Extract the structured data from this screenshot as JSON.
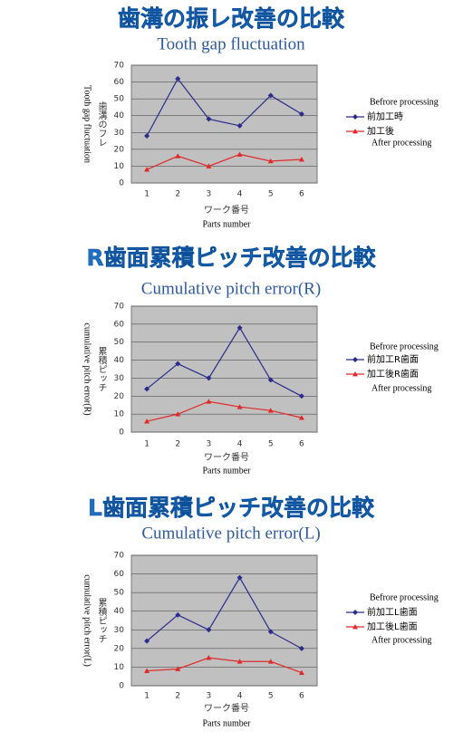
{
  "chart_data": [
    {
      "type": "line",
      "title": "歯溝の振レ改善の比較",
      "subtitle": "Tooth gap fluctuation",
      "y_label": "歯溝のフレ",
      "y_label_en": "Tooth gap fluctuation",
      "x_label": "ワーク番号",
      "x_label_en": "Parts number",
      "categories": [
        "1",
        "2",
        "3",
        "4",
        "5",
        "6"
      ],
      "ylim": [
        0,
        70
      ],
      "yticks": [
        0,
        10,
        20,
        30,
        40,
        50,
        60,
        70
      ],
      "series": [
        {
          "name": "前加工時",
          "annotation": "Befrore processing",
          "color": "#2b2b8c",
          "marker": "diamond",
          "values": [
            28,
            62,
            38,
            34,
            52,
            41
          ]
        },
        {
          "name": "加工後",
          "annotation": "After processing",
          "color": "#e02a2a",
          "marker": "triangle",
          "values": [
            8,
            16,
            10,
            17,
            13,
            14
          ]
        }
      ]
    },
    {
      "type": "line",
      "title": "R歯面累積ピッチ改善の比較",
      "subtitle": "Cumulative pitch error(R)",
      "y_label": "累積ピッチ",
      "y_label_en": "cumulative pitch error(R)",
      "x_label": "ワーク番号",
      "x_label_en": "Parts number",
      "categories": [
        "1",
        "2",
        "3",
        "4",
        "5",
        "6"
      ],
      "ylim": [
        0,
        70
      ],
      "yticks": [
        0,
        10,
        20,
        30,
        40,
        50,
        60,
        70
      ],
      "series": [
        {
          "name": "前加工R歯面",
          "annotation": "Befrore processing",
          "color": "#2b2b8c",
          "marker": "diamond",
          "values": [
            24,
            38,
            30,
            58,
            29,
            20
          ]
        },
        {
          "name": "加工後R歯面",
          "annotation": "After processing",
          "color": "#e02a2a",
          "marker": "triangle",
          "values": [
            6,
            10,
            17,
            14,
            12,
            8
          ]
        }
      ]
    },
    {
      "type": "line",
      "title": "L歯面累積ピッチ改善の比較",
      "subtitle": "Cumulative pitch error(L)",
      "y_label": "累積ピッチ",
      "y_label_en": "cumulative pitch error(L)",
      "x_label": "ワーク番号",
      "x_label_en": "Parts number",
      "categories": [
        "1",
        "2",
        "3",
        "4",
        "5",
        "6"
      ],
      "ylim": [
        0,
        70
      ],
      "yticks": [
        0,
        10,
        20,
        30,
        40,
        50,
        60,
        70
      ],
      "series": [
        {
          "name": "前加工L歯面",
          "annotation": "Befrore processing",
          "color": "#2b2b8c",
          "marker": "diamond",
          "values": [
            24,
            38,
            30,
            58,
            29,
            20
          ]
        },
        {
          "name": "加工後L歯面",
          "annotation": "After processing",
          "color": "#e02a2a",
          "marker": "triangle",
          "values": [
            8,
            9,
            15,
            13,
            13,
            7
          ]
        }
      ]
    }
  ]
}
